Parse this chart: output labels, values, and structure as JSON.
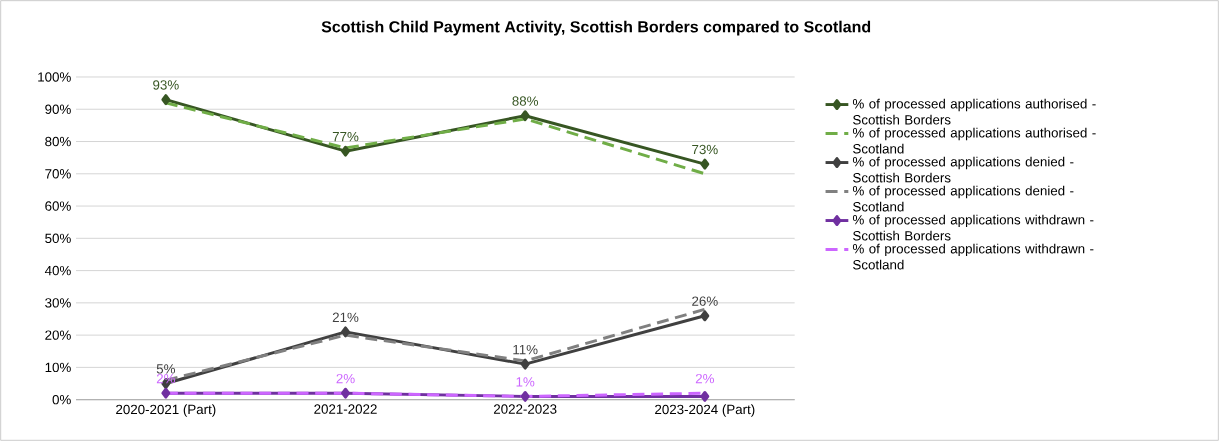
{
  "chart_data": {
    "type": "line",
    "title": "Scottish Child Payment Activity, Scottish Borders compared to Scotland",
    "categories": [
      "2020-2021 (Part)",
      "2021-2022",
      "2022-2023",
      "2023-2024 (Part)"
    ],
    "series": [
      {
        "name": "% of processed applications authorised - Scottish Borders",
        "color": "#375623",
        "values": [
          93,
          77,
          88,
          73
        ],
        "value_labels": [
          "93%",
          "77%",
          "88%",
          "73%"
        ],
        "marker": "diamond",
        "line_style": "solid"
      },
      {
        "name": "% of processed applications authorised - Scotland",
        "color": "#70ad47",
        "values": [
          92,
          78,
          87,
          70
        ],
        "marker": "none",
        "line_style": "dashed"
      },
      {
        "name": "% of processed applications denied - Scottish Borders",
        "color": "#404040",
        "values": [
          5,
          21,
          11,
          26
        ],
        "value_labels": [
          "5%",
          "21%",
          "11%",
          "26%"
        ],
        "marker": "diamond",
        "line_style": "solid"
      },
      {
        "name": "% of processed applications denied - Scotland",
        "color": "#808080",
        "values": [
          6,
          20,
          12,
          28
        ],
        "marker": "none",
        "line_style": "dashed"
      },
      {
        "name": "% of processed applications withdrawn - Scottish Borders",
        "color": "#7030a0",
        "values": [
          2,
          2,
          1,
          1
        ],
        "marker": "diamond",
        "line_style": "solid"
      },
      {
        "name": "% of processed applications withdrawn - Scotland",
        "color": "#cc66ff",
        "values": [
          2,
          2,
          1,
          2
        ],
        "value_labels": [
          "2%",
          "2%",
          "1%",
          "2%"
        ],
        "marker": "none",
        "line_style": "dashed"
      }
    ],
    "ylim": [
      0,
      100
    ],
    "yticks": [
      {
        "value": 0,
        "label": "0%"
      },
      {
        "value": 10,
        "label": "10%"
      },
      {
        "value": 20,
        "label": "20%"
      },
      {
        "value": 30,
        "label": "30%"
      },
      {
        "value": 40,
        "label": "40%"
      },
      {
        "value": 50,
        "label": "50%"
      },
      {
        "value": 60,
        "label": "60%"
      },
      {
        "value": 70,
        "label": "70%"
      },
      {
        "value": 80,
        "label": "80%"
      },
      {
        "value": 90,
        "label": "90%"
      },
      {
        "value": 100,
        "label": "100%"
      }
    ],
    "grid": "y",
    "legend": "right"
  }
}
